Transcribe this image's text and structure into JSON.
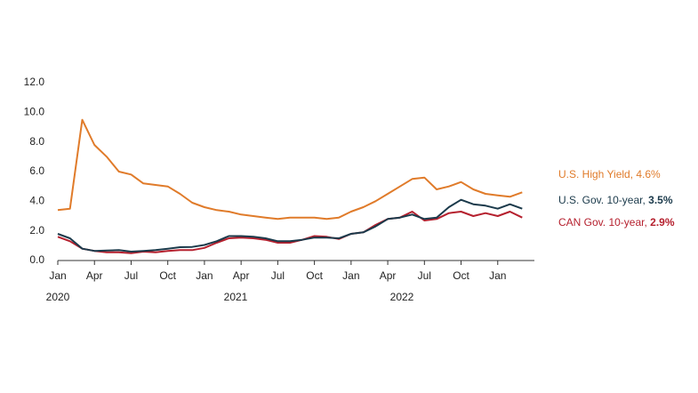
{
  "chart_data": {
    "type": "line",
    "x": [
      "2020-01",
      "2020-02",
      "2020-03",
      "2020-04",
      "2020-05",
      "2020-06",
      "2020-07",
      "2020-08",
      "2020-09",
      "2020-10",
      "2020-11",
      "2020-12",
      "2021-01",
      "2021-02",
      "2021-03",
      "2021-04",
      "2021-05",
      "2021-06",
      "2021-07",
      "2021-08",
      "2021-09",
      "2021-10",
      "2021-11",
      "2021-12",
      "2022-01",
      "2022-02",
      "2022-03",
      "2022-04",
      "2022-05",
      "2022-06",
      "2022-07",
      "2022-08",
      "2022-09",
      "2022-10",
      "2022-11",
      "2022-12",
      "2023-01",
      "2023-02",
      "2023-03"
    ],
    "xlim": [
      "2020-01",
      "2023-04"
    ],
    "xticks": [
      {
        "value": "2020-01",
        "label": "Jan"
      },
      {
        "value": "2020-04",
        "label": "Apr"
      },
      {
        "value": "2020-07",
        "label": "Jul"
      },
      {
        "value": "2020-10",
        "label": "Oct"
      },
      {
        "value": "2021-01",
        "label": "Jan"
      },
      {
        "value": "2021-04",
        "label": "Apr"
      },
      {
        "value": "2021-07",
        "label": "Jul"
      },
      {
        "value": "2021-10",
        "label": "Oct"
      },
      {
        "value": "2022-01",
        "label": "Jan"
      },
      {
        "value": "2022-04",
        "label": "Apr"
      },
      {
        "value": "2022-07",
        "label": "Jul"
      },
      {
        "value": "2022-10",
        "label": "Oct"
      },
      {
        "value": "2023-01",
        "label": "Jan"
      }
    ],
    "year_labels": [
      "2020",
      "2021",
      "2022"
    ],
    "ylim": [
      0,
      12
    ],
    "yticks": [
      {
        "value": 0,
        "label": "0.0"
      },
      {
        "value": 2,
        "label": "2.0"
      },
      {
        "value": 4,
        "label": "4.0"
      },
      {
        "value": 6,
        "label": "6.0"
      },
      {
        "value": 8,
        "label": "8.0"
      },
      {
        "value": 10,
        "label": "10.0"
      },
      {
        "value": 12,
        "label": "12.0"
      }
    ],
    "series": [
      {
        "name": "U.S. High Yield,",
        "end_label": "4.6%",
        "end_label_bold": false,
        "color": "#e07b2a",
        "values": [
          3.4,
          3.5,
          9.5,
          7.8,
          7.0,
          6.0,
          5.8,
          5.2,
          5.1,
          5.0,
          4.5,
          3.9,
          3.6,
          3.4,
          3.3,
          3.1,
          3.0,
          2.9,
          2.8,
          2.9,
          2.9,
          2.9,
          2.8,
          2.9,
          3.3,
          3.6,
          4.0,
          4.5,
          5.0,
          5.5,
          5.6,
          4.8,
          5.0,
          5.3,
          4.8,
          4.5,
          4.4,
          4.3,
          4.6
        ]
      },
      {
        "name": "U.S. Gov. 10-year,",
        "end_label": "3.5%",
        "end_label_bold": true,
        "color": "#1b3a4b",
        "values": [
          1.8,
          1.5,
          0.8,
          0.65,
          0.68,
          0.7,
          0.6,
          0.65,
          0.7,
          0.8,
          0.9,
          0.92,
          1.05,
          1.3,
          1.65,
          1.65,
          1.6,
          1.5,
          1.3,
          1.3,
          1.4,
          1.55,
          1.55,
          1.5,
          1.8,
          1.9,
          2.3,
          2.8,
          2.9,
          3.1,
          2.8,
          2.9,
          3.6,
          4.1,
          3.8,
          3.7,
          3.5,
          3.8,
          3.5
        ]
      },
      {
        "name": "CAN Gov. 10-year,",
        "end_label": "2.9%",
        "end_label_bold": true,
        "color": "#b5202e",
        "values": [
          1.6,
          1.3,
          0.8,
          0.65,
          0.55,
          0.55,
          0.5,
          0.6,
          0.55,
          0.65,
          0.7,
          0.7,
          0.85,
          1.2,
          1.5,
          1.55,
          1.5,
          1.4,
          1.2,
          1.2,
          1.4,
          1.65,
          1.6,
          1.45,
          1.8,
          1.9,
          2.4,
          2.8,
          2.9,
          3.3,
          2.7,
          2.8,
          3.2,
          3.3,
          3.0,
          3.2,
          3.0,
          3.3,
          2.9
        ]
      }
    ]
  }
}
